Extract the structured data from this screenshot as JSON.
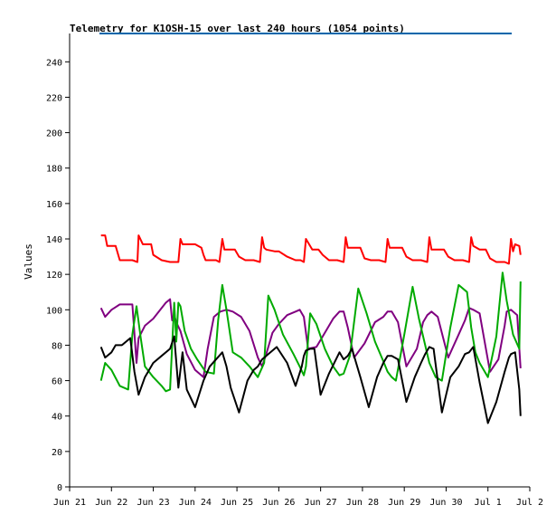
{
  "chart_data": {
    "type": "line",
    "title": "Telemetry for K1OSH-15 over last 240 hours (1054 points)",
    "ylabel": "Values",
    "xlabel": "",
    "ylim": [
      0,
      256
    ],
    "yticks": [
      0,
      20,
      40,
      60,
      80,
      100,
      120,
      140,
      160,
      180,
      200,
      220,
      240
    ],
    "xlim": [
      0,
      11
    ],
    "xticks": [
      {
        "value": 0,
        "label": "Jun 21"
      },
      {
        "value": 1,
        "label": "Jun 22"
      },
      {
        "value": 2,
        "label": "Jun 23"
      },
      {
        "value": 3,
        "label": "Jun 24"
      },
      {
        "value": 4,
        "label": "Jun 25"
      },
      {
        "value": 5,
        "label": "Jun 26"
      },
      {
        "value": 6,
        "label": "Jun 27"
      },
      {
        "value": 7,
        "label": "Jun 28"
      },
      {
        "value": 8,
        "label": "Jun 29"
      },
      {
        "value": 9,
        "label": "Jun 30"
      },
      {
        "value": 10,
        "label": "Jul 1"
      },
      {
        "value": 11,
        "label": "Jul 2"
      }
    ],
    "grid": false,
    "series": [
      {
        "color": "#ff0000",
        "x": [
          0.75,
          0.85,
          0.9,
          1.1,
          1.2,
          1.5,
          1.62,
          1.65,
          1.75,
          1.95,
          2.0,
          2.2,
          2.4,
          2.6,
          2.65,
          2.7,
          3.0,
          3.15,
          3.2,
          3.25,
          3.5,
          3.58,
          3.65,
          3.7,
          3.8,
          3.95,
          4.05,
          4.2,
          4.4,
          4.55,
          4.6,
          4.65,
          4.7,
          4.9,
          5.0,
          5.2,
          5.4,
          5.52,
          5.6,
          5.65,
          5.8,
          5.95,
          6.05,
          6.2,
          6.4,
          6.55,
          6.6,
          6.65,
          6.8,
          6.95,
          7.05,
          7.2,
          7.4,
          7.55,
          7.6,
          7.65,
          7.8,
          7.95,
          8.05,
          8.2,
          8.4,
          8.55,
          8.6,
          8.65,
          8.8,
          8.95,
          9.05,
          9.2,
          9.4,
          9.55,
          9.6,
          9.65,
          9.8,
          9.95,
          10.05,
          10.2,
          10.4,
          10.5,
          10.55,
          10.6,
          10.65,
          10.75,
          10.78
        ],
        "values": [
          142,
          142,
          136,
          136,
          128,
          128,
          127,
          142,
          137,
          137,
          131,
          128,
          127,
          127,
          140,
          137,
          137,
          135,
          131,
          128,
          128,
          127,
          140,
          134,
          134,
          134,
          130,
          128,
          128,
          127,
          141,
          135,
          134,
          133,
          133,
          130,
          128,
          128,
          127,
          140,
          134,
          134,
          131,
          128,
          128,
          127,
          141,
          135,
          135,
          135,
          129,
          128,
          128,
          127,
          140,
          135,
          135,
          135,
          130,
          128,
          128,
          127,
          141,
          134,
          134,
          134,
          130,
          128,
          128,
          127,
          141,
          136,
          134,
          134,
          129,
          127,
          127,
          126,
          140,
          133,
          137,
          136,
          131
        ]
      },
      {
        "color": "#800080",
        "x": [
          0.75,
          0.85,
          1.0,
          1.2,
          1.5,
          1.6,
          1.65,
          1.8,
          2.0,
          2.3,
          2.4,
          2.45,
          2.5,
          2.55,
          2.65,
          2.8,
          3.0,
          3.2,
          3.3,
          3.45,
          3.6,
          3.75,
          3.9,
          4.1,
          4.3,
          4.5,
          4.6,
          4.7,
          4.85,
          5.0,
          5.2,
          5.4,
          5.5,
          5.6,
          5.7,
          5.9,
          6.1,
          6.3,
          6.45,
          6.55,
          6.65,
          6.8,
          7.05,
          7.3,
          7.5,
          7.6,
          7.7,
          7.85,
          8.05,
          8.3,
          8.45,
          8.55,
          8.65,
          8.8,
          9.05,
          9.3,
          9.45,
          9.55,
          9.65,
          9.8,
          10.05,
          10.25,
          10.4,
          10.45,
          10.55,
          10.7,
          10.78
        ],
        "values": [
          101,
          96,
          100,
          103,
          103,
          70,
          84,
          91,
          95,
          104,
          106,
          94,
          97,
          93,
          88,
          75,
          66,
          62,
          78,
          96,
          99,
          100,
          99,
          96,
          88,
          73,
          68,
          75,
          87,
          92,
          97,
          99,
          100,
          96,
          78,
          79,
          87,
          95,
          99,
          99,
          90,
          73,
          81,
          93,
          96,
          99,
          99,
          93,
          68,
          78,
          93,
          97,
          99,
          96,
          73,
          86,
          94,
          101,
          100,
          98,
          65,
          72,
          91,
          99,
          100,
          97,
          67
        ]
      },
      {
        "color": "#00aa00",
        "x": [
          0.75,
          0.85,
          1.0,
          1.2,
          1.4,
          1.5,
          1.6,
          1.7,
          1.8,
          2.0,
          2.2,
          2.3,
          2.4,
          2.5,
          2.55,
          2.6,
          2.65,
          2.75,
          2.9,
          3.05,
          3.25,
          3.45,
          3.55,
          3.65,
          3.75,
          3.9,
          4.1,
          4.3,
          4.5,
          4.65,
          4.75,
          4.9,
          5.1,
          5.35,
          5.5,
          5.6,
          5.65,
          5.75,
          5.9,
          6.1,
          6.3,
          6.45,
          6.55,
          6.7,
          6.9,
          7.1,
          7.3,
          7.5,
          7.6,
          7.7,
          7.8,
          8.0,
          8.2,
          8.35,
          8.5,
          8.6,
          8.75,
          8.9,
          9.1,
          9.3,
          9.5,
          9.6,
          9.7,
          9.8,
          10.0,
          10.2,
          10.35,
          10.45,
          10.6,
          10.75,
          10.78
        ],
        "values": [
          60,
          70,
          66,
          57,
          55,
          86,
          102,
          84,
          68,
          62,
          57,
          54,
          55,
          104,
          82,
          104,
          102,
          88,
          78,
          72,
          65,
          64,
          94,
          114,
          100,
          76,
          73,
          68,
          62,
          70,
          108,
          100,
          86,
          75,
          68,
          63,
          68,
          98,
          92,
          78,
          68,
          63,
          64,
          74,
          112,
          98,
          82,
          71,
          65,
          62,
          60,
          86,
          113,
          95,
          80,
          70,
          62,
          60,
          90,
          114,
          110,
          90,
          76,
          70,
          62,
          85,
          121,
          105,
          86,
          78,
          116
        ]
      },
      {
        "color": "#000000",
        "x": [
          0.75,
          0.85,
          1.0,
          1.1,
          1.25,
          1.45,
          1.55,
          1.65,
          1.8,
          2.0,
          2.2,
          2.4,
          2.5,
          2.6,
          2.7,
          2.8,
          3.0,
          3.2,
          3.35,
          3.5,
          3.65,
          3.75,
          3.85,
          4.05,
          4.25,
          4.4,
          4.5,
          4.6,
          4.75,
          4.95,
          5.2,
          5.4,
          5.55,
          5.6,
          5.65,
          5.75,
          5.85,
          6.0,
          6.2,
          6.45,
          6.55,
          6.65,
          6.75,
          6.95,
          7.15,
          7.35,
          7.5,
          7.6,
          7.7,
          7.85,
          8.05,
          8.25,
          8.4,
          8.5,
          8.6,
          8.7,
          8.9,
          9.1,
          9.3,
          9.45,
          9.55,
          9.65,
          9.8,
          10.0,
          10.2,
          10.4,
          10.5,
          10.55,
          10.65,
          10.75,
          10.78
        ],
        "values": [
          79,
          73,
          76,
          80,
          80,
          84,
          65,
          52,
          62,
          70,
          74,
          78,
          85,
          56,
          76,
          55,
          45,
          60,
          68,
          72,
          76,
          68,
          56,
          42,
          60,
          66,
          68,
          72,
          75,
          79,
          70,
          57,
          68,
          74,
          77,
          78,
          78,
          52,
          64,
          76,
          72,
          74,
          78,
          62,
          45,
          62,
          70,
          74,
          74,
          72,
          48,
          62,
          70,
          75,
          79,
          78,
          42,
          62,
          68,
          75,
          76,
          79,
          59,
          36,
          48,
          65,
          73,
          75,
          76,
          55,
          40
        ]
      }
    ]
  },
  "decor": {
    "top_line_color": "#0066aa"
  }
}
